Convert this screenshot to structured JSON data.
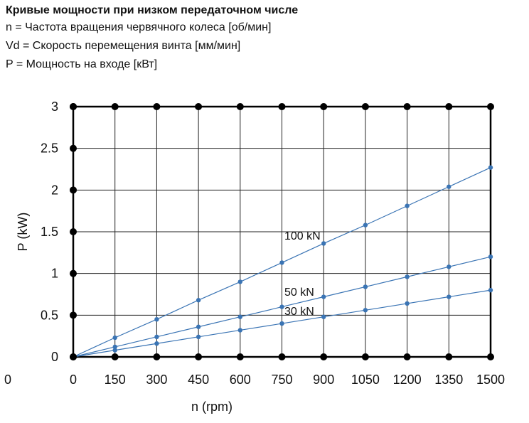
{
  "header": {
    "title": "Кривые мощности при низком передаточном числе",
    "lines": [
      "n = Частота вращения червячного колеса [об/мин]",
      "Vd = Скорость перемещения винта [мм/мин]",
      "P = Мощность на входе [кВт]"
    ]
  },
  "chart_data": {
    "type": "line",
    "title": "Кривые мощности при низком передаточном числе",
    "xlabel": "n  (rpm)",
    "ylabel": "P (kW)",
    "xlim": [
      0,
      1500
    ],
    "ylim": [
      0,
      3
    ],
    "x_ticks": [
      "0",
      "150",
      "300",
      "450",
      "600",
      "750",
      "900",
      "1050",
      "1200",
      "1350",
      "1500"
    ],
    "y_ticks": [
      "0",
      "0.5",
      "1",
      "1.5",
      "2",
      "2.5",
      "3"
    ],
    "left_clipped_tick": "0",
    "grid": true,
    "line_color": "#3a74b4",
    "series": [
      {
        "name": "100 kN",
        "x": [
          0,
          150,
          300,
          450,
          600,
          750,
          900,
          1050,
          1200,
          1350,
          1500
        ],
        "values": [
          0,
          0.23,
          0.45,
          0.68,
          0.9,
          1.13,
          1.36,
          1.58,
          1.81,
          2.04,
          2.27
        ]
      },
      {
        "name": "50 kN",
        "x": [
          0,
          150,
          300,
          450,
          600,
          750,
          900,
          1050,
          1200,
          1350,
          1500
        ],
        "values": [
          0,
          0.12,
          0.24,
          0.36,
          0.48,
          0.6,
          0.72,
          0.84,
          0.96,
          1.08,
          1.2
        ]
      },
      {
        "name": "30 kN",
        "x": [
          0,
          150,
          300,
          450,
          600,
          750,
          900,
          1050,
          1200,
          1350,
          1500
        ],
        "values": [
          0,
          0.08,
          0.16,
          0.24,
          0.32,
          0.4,
          0.48,
          0.56,
          0.64,
          0.72,
          0.8
        ]
      }
    ]
  }
}
